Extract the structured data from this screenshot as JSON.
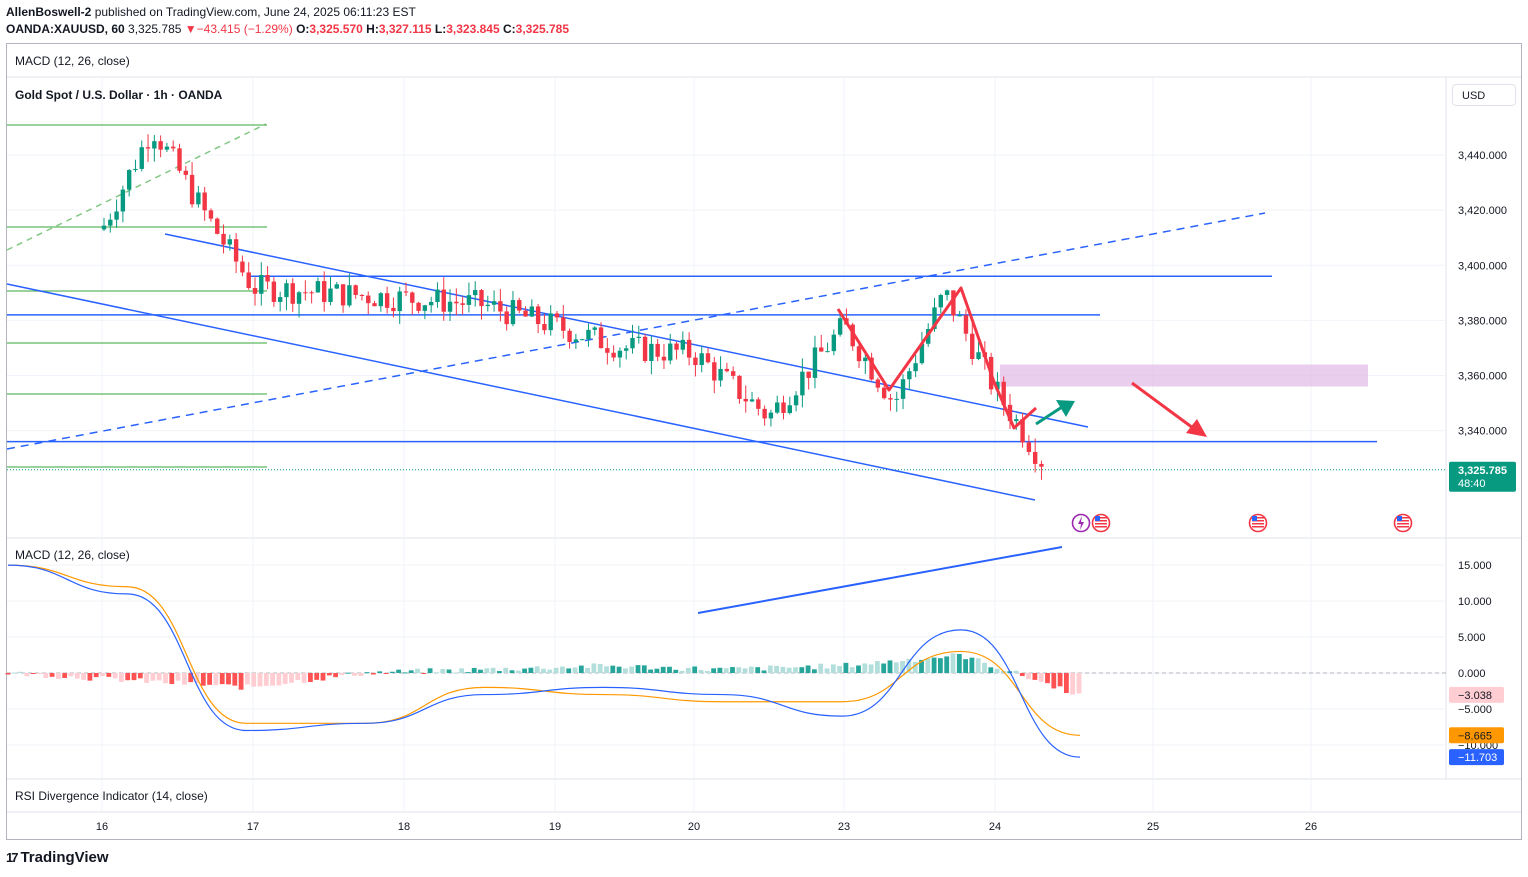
{
  "header": {
    "author": "AllenBoswell-2",
    "published": "published on TradingView.com, June 24, 2025 06:11:23 EST",
    "symbol": "OANDA:XAUUSD, 60",
    "last": "3,325.785",
    "change_arrow": "▼",
    "change": "−43.415 (−1.29%)",
    "o_label": "O:",
    "o": "3,325.570",
    "h_label": "H:",
    "h": "3,327.115",
    "l_label": "L:",
    "l": "3,323.845",
    "c_label": "C:",
    "c": "3,325.785"
  },
  "panes": {
    "top_indicator": "MACD (12, 26, close)",
    "main_title": "Gold Spot / U.S. Dollar · 1h · OANDA",
    "currency": "USD",
    "macd_title": "MACD (12, 26, close)",
    "rsi_title": "RSI Divergence Indicator (14, close)"
  },
  "price_badge": {
    "price": "3,325.785",
    "countdown": "48:40"
  },
  "macd_badges": {
    "hist": "−3.038",
    "signal": "−8.665",
    "macd": "−11.703"
  },
  "brand": {
    "name": "TradingView",
    "mark": "17"
  },
  "colors": {
    "up": "#089981",
    "down": "#f23645",
    "trend": "#2962ff",
    "support": "#4caf50",
    "arrow_up": "#089981",
    "arrow_down": "#f23645",
    "zone": "#e1bee7",
    "macd": "#2962ff",
    "signal": "#ff9800",
    "hist_pos": "#26a69a",
    "hist_pos_light": "#b2dfdb",
    "hist_neg": "#ff5252",
    "hist_neg_light": "#ffcdd2"
  },
  "chart_data": [
    {
      "type": "candlestick",
      "title": "Gold Spot / U.S. Dollar · 1h · OANDA",
      "y_axis_ticks": [
        3440,
        3420,
        3400,
        3380,
        3360,
        3340
      ],
      "y_axis_tick_labels": [
        "3,440.000",
        "3,420.000",
        "3,400.000",
        "3,380.000",
        "3,360.000",
        "3,340.000"
      ],
      "ylim": [
        3302,
        3465
      ],
      "x_axis_ticks": [
        "16",
        "17",
        "18",
        "19",
        "20",
        "23",
        "24",
        "25",
        "26"
      ],
      "key_levels": [
        3396,
        3382,
        3336
      ],
      "resistance_zone": [
        3356,
        3364
      ],
      "last_price": 3325.785,
      "approx_price_path": [
        {
          "x": "Jun 16 00:00",
          "y": 3413
        },
        {
          "x": "Jun 16 08:00",
          "y": 3450
        },
        {
          "x": "Jun 16 16:00",
          "y": 3420
        },
        {
          "x": "Jun 17 00:00",
          "y": 3392
        },
        {
          "x": "Jun 17 12:00",
          "y": 3390
        },
        {
          "x": "Jun 18 00:00",
          "y": 3388
        },
        {
          "x": "Jun 18 12:00",
          "y": 3386
        },
        {
          "x": "Jun 19 00:00",
          "y": 3378
        },
        {
          "x": "Jun 19 12:00",
          "y": 3370
        },
        {
          "x": "Jun 20 00:00",
          "y": 3368
        },
        {
          "x": "Jun 20 12:00",
          "y": 3345
        },
        {
          "x": "Jun 23 00:00",
          "y": 3378
        },
        {
          "x": "Jun 23 08:00",
          "y": 3350
        },
        {
          "x": "Jun 23 16:00",
          "y": 3390
        },
        {
          "x": "Jun 24 00:00",
          "y": 3355
        },
        {
          "x": "Jun 24 08:00",
          "y": 3326
        }
      ]
    },
    {
      "type": "line",
      "title": "MACD (12, 26, close)",
      "y_axis_ticks": [
        15,
        10,
        5,
        0,
        -5,
        -10
      ],
      "y_axis_tick_labels": [
        "15.000",
        "10.000",
        "5.000",
        "0.000",
        "−5.000",
        "−10.000"
      ],
      "ylim": [
        -14,
        17
      ],
      "series": [
        {
          "name": "MACD",
          "values": [
            15,
            11,
            -8,
            -7,
            -3,
            -2,
            -3,
            -6,
            6,
            -11.703
          ]
        },
        {
          "name": "Signal",
          "values": [
            15,
            12,
            -7,
            -7,
            -2,
            -3,
            -4,
            -4,
            3,
            -8.665
          ]
        },
        {
          "name": "Histogram",
          "values": [
            0,
            -1,
            -2,
            0,
            0.5,
            1,
            0.5,
            1,
            2.5,
            -3.038
          ]
        }
      ]
    }
  ]
}
